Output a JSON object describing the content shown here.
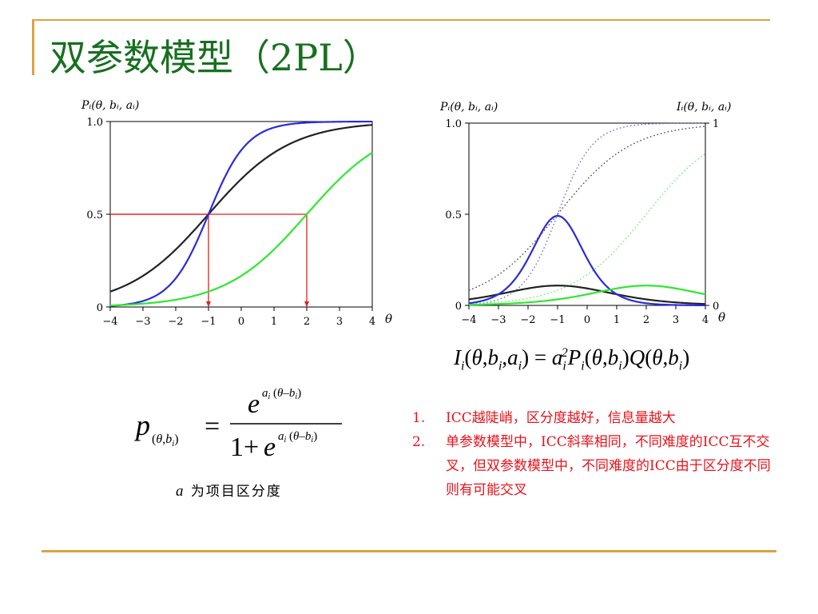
{
  "slide": {
    "title": "双参数模型（2PL）",
    "note_var": "a",
    "note_text": "为项目区分度",
    "points": [
      {
        "num": "1.",
        "text": "ICC越陡峭，区分度越好，信息量越大"
      },
      {
        "num": "2.",
        "text": "单参数模型中，ICC斜率相同，不同难度的ICC互不交叉，但双参数模型中，不同难度的ICC由于区分度不同则有可能交叉"
      }
    ],
    "colors": {
      "accent_rule": "#d9a441",
      "title": "#17701f",
      "points_text": "#e8121a"
    }
  },
  "chart_data": [
    {
      "type": "line",
      "ylabel": "Pᵢ(θ, bᵢ, aᵢ)",
      "xlabel": "θ",
      "xlim": [
        -4,
        4
      ],
      "ylim": [
        0,
        1
      ],
      "xticks": [
        "−4",
        "−3",
        "−2",
        "−1",
        "0",
        "1",
        "2",
        "3",
        "4"
      ],
      "yticks": [
        "0",
        "0.5",
        "1.0"
      ],
      "series": [
        {
          "model": "2PL",
          "a": 0.8,
          "b": -1,
          "color": "#222222",
          "style": "solid"
        },
        {
          "model": "2PL",
          "a": 1.7,
          "b": -1,
          "color": "#2b2bdc",
          "style": "solid"
        },
        {
          "model": "2PL",
          "a": 0.8,
          "b": 2,
          "color": "#2ee82e",
          "style": "solid"
        }
      ],
      "guides": [
        {
          "x": -1,
          "y": 0.5,
          "color": "#e02020"
        },
        {
          "x": 2,
          "y": 0.5,
          "color": "#e02020"
        }
      ]
    },
    {
      "type": "line",
      "ylabel": "Pᵢ(θ, bᵢ, aᵢ)",
      "y2label": "Iᵢ(θ, bᵢ, aᵢ)",
      "xlabel": "θ",
      "xlim": [
        -4,
        4
      ],
      "ylim": [
        0,
        1
      ],
      "y2lim": [
        0,
        1
      ],
      "xticks": [
        "−4",
        "−3",
        "−2",
        "−1",
        "0",
        "1",
        "2",
        "3",
        "4"
      ],
      "yticks": [
        "0",
        "0.5",
        "1.0"
      ],
      "y2ticks": [
        "0",
        "1"
      ],
      "series": [
        {
          "kind": "icc",
          "a": 0.8,
          "b": -1,
          "color": "#444444",
          "style": "dotted"
        },
        {
          "kind": "icc",
          "a": 1.7,
          "b": -1,
          "color": "#6a6ae0",
          "style": "dotted"
        },
        {
          "kind": "icc",
          "a": 0.8,
          "b": 2,
          "color": "#5cf05c",
          "style": "dotted"
        },
        {
          "kind": "info",
          "a": 0.8,
          "b": -1,
          "color": "#222222",
          "style": "solid"
        },
        {
          "kind": "info",
          "a": 1.7,
          "b": -1,
          "color": "#2b2bdc",
          "style": "solid"
        },
        {
          "kind": "info",
          "a": 0.8,
          "b": 2,
          "color": "#2ee82e",
          "style": "solid"
        }
      ]
    }
  ]
}
